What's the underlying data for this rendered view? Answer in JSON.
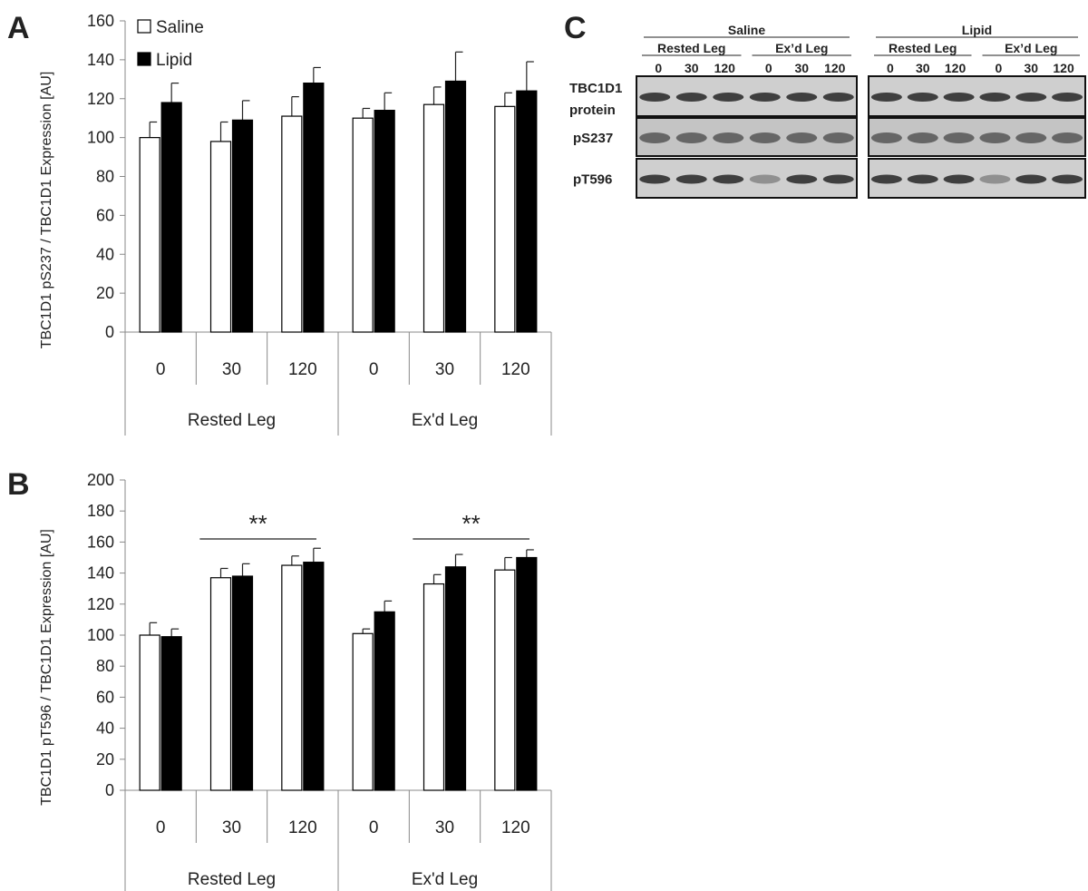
{
  "legend": [
    {
      "label": "Saline",
      "fill": "#ffffff"
    },
    {
      "label": "Lipid",
      "fill": "#000000"
    }
  ],
  "chart_data": [
    {
      "panel": "A",
      "type": "bar",
      "ylabel": "TBC1D1 pS237 / TBC1D1 Expression [AU]",
      "ylim": [
        0,
        160
      ],
      "yticks": [
        0,
        20,
        40,
        60,
        80,
        100,
        120,
        140,
        160
      ],
      "categories": [
        "0",
        "30",
        "120",
        "0",
        "30",
        "120"
      ],
      "groups": [
        {
          "label": "Rested Leg",
          "span": [
            0,
            2
          ]
        },
        {
          "label": "Ex'd Leg",
          "span": [
            3,
            5
          ]
        }
      ],
      "series": [
        {
          "name": "Saline",
          "color": "#ffffff",
          "values": [
            100,
            98,
            111,
            110,
            117,
            116
          ],
          "errors": [
            8,
            10,
            10,
            5,
            9,
            7
          ]
        },
        {
          "name": "Lipid",
          "color": "#000000",
          "values": [
            118,
            109,
            128,
            114,
            129,
            124
          ],
          "errors": [
            10,
            10,
            8,
            9,
            15,
            15
          ]
        }
      ],
      "significance": []
    },
    {
      "panel": "B",
      "type": "bar",
      "ylabel": "TBC1D1 pT596 / TBC1D1 Expression [AU]",
      "ylim": [
        0,
        200
      ],
      "yticks": [
        0,
        20,
        40,
        60,
        80,
        100,
        120,
        140,
        160,
        180,
        200
      ],
      "categories": [
        "0",
        "30",
        "120",
        "0",
        "30",
        "120"
      ],
      "groups": [
        {
          "label": "Rested Leg",
          "span": [
            0,
            2
          ]
        },
        {
          "label": "Ex'd Leg",
          "span": [
            3,
            5
          ]
        }
      ],
      "series": [
        {
          "name": "Saline",
          "color": "#ffffff",
          "values": [
            100,
            137,
            145,
            101,
            133,
            142
          ],
          "errors": [
            8,
            6,
            6,
            3,
            6,
            8
          ]
        },
        {
          "name": "Lipid",
          "color": "#000000",
          "values": [
            99,
            138,
            147,
            115,
            144,
            150
          ],
          "errors": [
            5,
            8,
            9,
            7,
            8,
            5
          ]
        }
      ],
      "significance": [
        {
          "label": "**",
          "from": 1,
          "to": 2,
          "y": 162
        },
        {
          "label": "**",
          "from": 4,
          "to": 5,
          "y": 162
        }
      ]
    }
  ],
  "blot": {
    "panel": "C",
    "conditions": [
      {
        "label": "Saline",
        "subgroups": [
          {
            "label": "Rested Leg",
            "times": [
              "0",
              "30",
              "120"
            ]
          },
          {
            "label": "Ex’d Leg",
            "times": [
              "0",
              "30",
              "120"
            ]
          }
        ]
      },
      {
        "label": "Lipid",
        "subgroups": [
          {
            "label": "Rested Leg",
            "times": [
              "0",
              "30",
              "120"
            ]
          },
          {
            "label": "Ex’d Leg",
            "times": [
              "0",
              "30",
              "120"
            ]
          }
        ]
      }
    ],
    "rows": [
      {
        "label_line1": "TBC1D1",
        "label_line2": "protein"
      },
      {
        "label_line1": "pS237",
        "label_line2": ""
      },
      {
        "label_line1": "pT596",
        "label_line2": ""
      }
    ]
  }
}
